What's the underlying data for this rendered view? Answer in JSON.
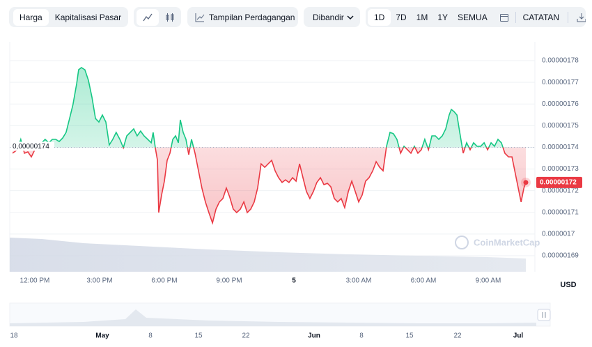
{
  "toolbar": {
    "tabs": [
      "Harga",
      "Kapitalisasi Pasar"
    ],
    "trading_view": "Tampilan Perdagangan",
    "compare": "Dibandir",
    "ranges": [
      "1D",
      "7D",
      "1M",
      "1Y",
      "SEMUA"
    ],
    "notes": "CATATAN"
  },
  "chart_data": {
    "type": "line",
    "x": [
      -1.03,
      -0.81,
      -0.65,
      -0.48,
      -0.32,
      -0.16,
      0,
      0.16,
      0.32,
      0.48,
      0.65,
      0.81,
      0.97,
      1.13,
      1.29,
      1.45,
      1.61,
      1.77,
      1.94,
      2.03,
      2.16,
      2.32,
      2.48,
      2.65,
      2.81,
      2.97,
      3.13,
      3.29,
      3.45,
      3.61,
      3.77,
      3.94,
      4.1,
      4.26,
      4.42,
      4.58,
      4.74,
      4.9,
      5.06,
      5.23,
      5.39,
      5.48,
      5.58,
      5.68,
      5.74,
      5.87,
      6.0,
      6.13,
      6.26,
      6.39,
      6.52,
      6.65,
      6.74,
      6.87,
      7.0,
      7.13,
      7.26,
      7.42,
      7.58,
      7.74,
      7.9,
      8.06,
      8.23,
      8.39,
      8.55,
      8.71,
      8.87,
      9.03,
      9.19,
      9.35,
      9.52,
      9.68,
      9.84,
      10.0,
      10.16,
      10.32,
      10.48,
      10.65,
      10.81,
      10.97,
      11.13,
      11.29,
      11.45,
      11.61,
      11.77,
      11.94,
      12.1,
      12.26,
      12.42,
      12.58,
      12.74,
      12.9,
      13.06,
      13.23,
      13.39,
      13.55,
      13.71,
      13.87,
      14.03,
      14.19,
      14.35,
      14.52,
      14.68,
      14.84,
      15.0,
      15.16,
      15.32,
      15.48,
      15.65,
      15.81,
      15.97,
      16.13,
      16.29,
      16.45,
      16.61,
      16.77,
      16.94,
      17.1,
      17.26,
      17.42,
      17.58,
      17.74,
      17.9,
      18.06,
      18.23,
      18.39,
      18.55,
      18.71,
      18.87,
      19.03,
      19.19,
      19.29,
      19.42,
      19.55,
      19.68,
      19.84,
      20.0,
      20.16,
      20.32,
      20.48,
      20.65,
      20.81,
      20.97,
      21.13,
      21.29,
      21.45,
      21.61,
      21.77,
      21.94,
      22.1,
      22.26,
      22.42,
      22.52,
      22.65,
      22.74
    ],
    "values": [
      1.7373e-06,
      1.7389e-06,
      1.7437e-06,
      1.7373e-06,
      1.7379e-06,
      1.7356e-06,
      1.7389e-06,
      1.7421e-06,
      1.7421e-06,
      1.7437e-06,
      1.7421e-06,
      1.7437e-06,
      1.7437e-06,
      1.7427e-06,
      1.7443e-06,
      1.7469e-06,
      1.7533e-06,
      1.7598e-06,
      1.7694e-06,
      1.7758e-06,
      1.7768e-06,
      1.7758e-06,
      1.771e-06,
      1.763e-06,
      1.7533e-06,
      1.7517e-06,
      1.7549e-06,
      1.7517e-06,
      1.7411e-06,
      1.7437e-06,
      1.7469e-06,
      1.7437e-06,
      1.7398e-06,
      1.7453e-06,
      1.7469e-06,
      1.7485e-06,
      1.7453e-06,
      1.7475e-06,
      1.7453e-06,
      1.7437e-06,
      1.7421e-06,
      1.7469e-06,
      1.7398e-06,
      1.734e-06,
      1.7099e-06,
      1.718e-06,
      1.7244e-06,
      1.734e-06,
      1.7373e-06,
      1.7437e-06,
      1.7453e-06,
      1.7421e-06,
      1.7527e-06,
      1.7469e-06,
      1.7437e-06,
      1.7366e-06,
      1.7437e-06,
      1.7373e-06,
      1.7292e-06,
      1.7212e-06,
      1.7148e-06,
      1.7099e-06,
      1.7051e-06,
      1.7115e-06,
      1.7148e-06,
      1.7164e-06,
      1.7212e-06,
      1.717e-06,
      1.7115e-06,
      1.7099e-06,
      1.7115e-06,
      1.7148e-06,
      1.7099e-06,
      1.7115e-06,
      1.7148e-06,
      1.7212e-06,
      1.7324e-06,
      1.7308e-06,
      1.7324e-06,
      1.734e-06,
      1.7292e-06,
      1.726e-06,
      1.7238e-06,
      1.725e-06,
      1.7238e-06,
      1.726e-06,
      1.7244e-06,
      1.7324e-06,
      1.726e-06,
      1.7196e-06,
      1.7164e-06,
      1.7196e-06,
      1.7238e-06,
      1.726e-06,
      1.7228e-06,
      1.7234e-06,
      1.7218e-06,
      1.7164e-06,
      1.7148e-06,
      1.7164e-06,
      1.7122e-06,
      1.7196e-06,
      1.7244e-06,
      1.7196e-06,
      1.7148e-06,
      1.718e-06,
      1.7244e-06,
      1.726e-06,
      1.7292e-06,
      1.7334e-06,
      1.7308e-06,
      1.7292e-06,
      1.7405e-06,
      1.7469e-06,
      1.7463e-06,
      1.7437e-06,
      1.7373e-06,
      1.7405e-06,
      1.7389e-06,
      1.7373e-06,
      1.7405e-06,
      1.7373e-06,
      1.7389e-06,
      1.7437e-06,
      1.7389e-06,
      1.7453e-06,
      1.7453e-06,
      1.7437e-06,
      1.7453e-06,
      1.7485e-06,
      1.7549e-06,
      1.7575e-06,
      1.7565e-06,
      1.7549e-06,
      1.7469e-06,
      1.7373e-06,
      1.7421e-06,
      1.7389e-06,
      1.7421e-06,
      1.7405e-06,
      1.7405e-06,
      1.7421e-06,
      1.7389e-06,
      1.7421e-06,
      1.7405e-06,
      1.7437e-06,
      1.7421e-06,
      1.7373e-06,
      1.7356e-06,
      1.7356e-06,
      1.7276e-06,
      1.7196e-06,
      1.7148e-06,
      1.7212e-06,
      1.7238e-06
    ],
    "up_color": "#16c784",
    "down_color": "#ea3943",
    "baseline": 1.74e-06,
    "baseline_label": "0,00000174",
    "current_label": "0.00000172",
    "xlim": [
      -1.16,
      23.16
    ],
    "xticks": [
      {
        "value": 0,
        "label": "12:00 PM"
      },
      {
        "value": 3,
        "label": "3:00 PM"
      },
      {
        "value": 6,
        "label": "6:00 PM"
      },
      {
        "value": 9,
        "label": "9:00 PM"
      },
      {
        "value": 12,
        "label": "5"
      },
      {
        "value": 15,
        "label": "3:00 AM"
      },
      {
        "value": 18,
        "label": "6:00 AM"
      },
      {
        "value": 21,
        "label": "9:00 AM"
      }
    ],
    "ylim": [
      1.6826e-06,
      1.7887e-06
    ],
    "yticks": [
      1.69e-06,
      1.7e-06,
      1.71e-06,
      1.72e-06,
      1.73e-06,
      1.74e-06,
      1.75e-06,
      1.76e-06,
      1.77e-06,
      1.78e-06
    ],
    "y_unit": "USD",
    "watermark": "CoinMarketCap",
    "grid": true
  },
  "navigator": {
    "labels": [
      "18",
      "May",
      "8",
      "15",
      "22",
      "Jun",
      "8",
      "15",
      "22",
      "Jul"
    ]
  }
}
